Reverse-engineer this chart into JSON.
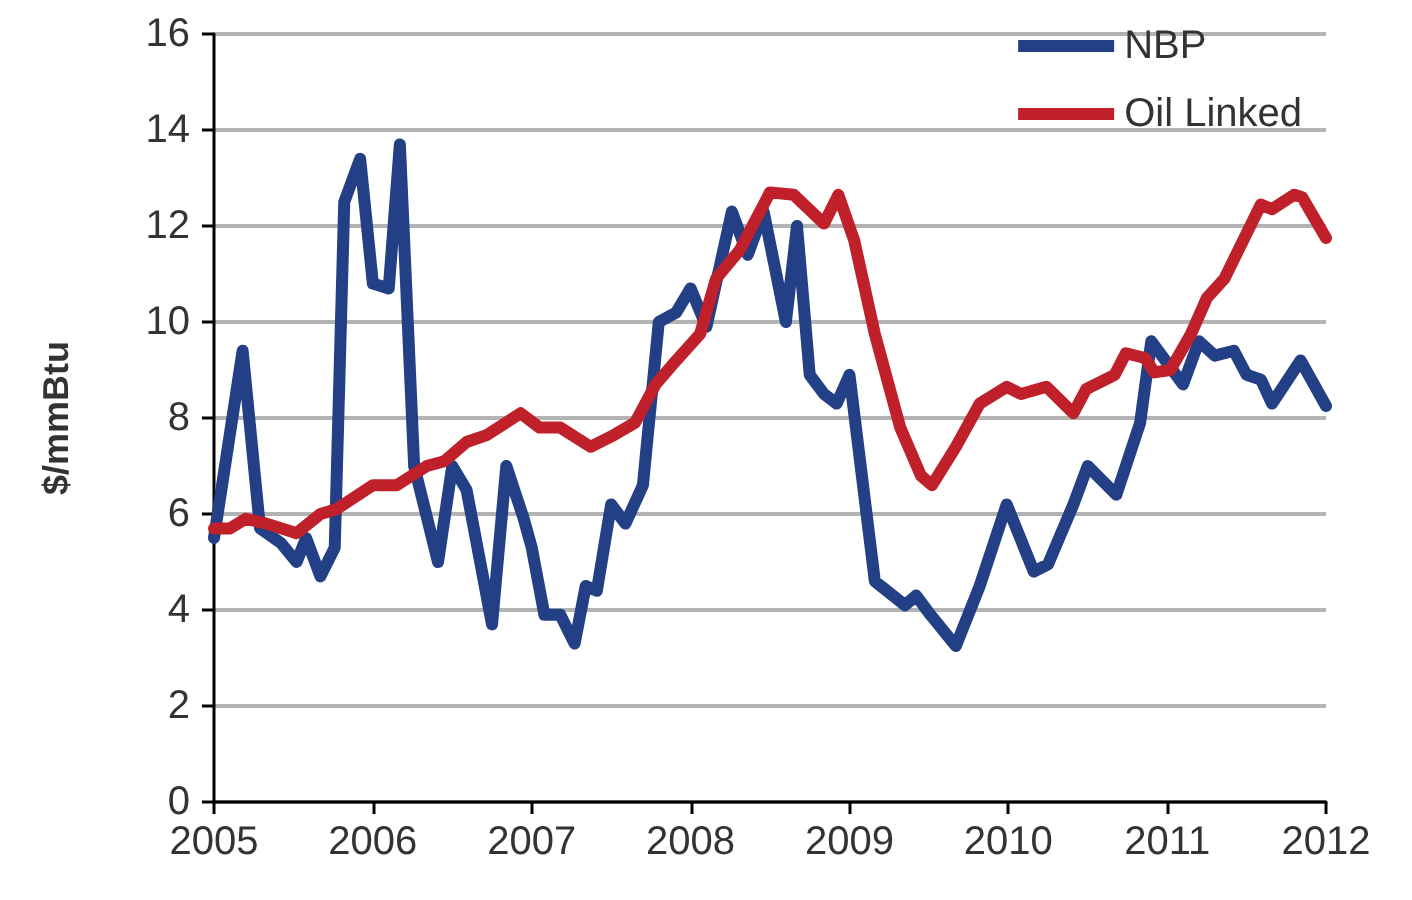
{
  "chart_data": {
    "type": "line",
    "ylabel": "$/mmBtu",
    "xlim": [
      2005,
      2012
    ],
    "xticks": [
      2005,
      2006,
      2007,
      2008,
      2009,
      2010,
      2011,
      2012
    ],
    "ylim": [
      0,
      16
    ],
    "yticks": [
      0,
      2,
      4,
      6,
      8,
      10,
      12,
      14,
      16
    ],
    "grid": "y",
    "legend": "top right",
    "marker": "none",
    "line_style": "solid",
    "series": [
      {
        "name": "NBP",
        "color": "#233f86",
        "x": [
          2005.0,
          2005.18,
          2005.29,
          2005.42,
          2005.52,
          2005.58,
          2005.67,
          2005.76,
          2005.82,
          2005.92,
          2006.0,
          2006.1,
          2006.17,
          2006.26,
          2006.41,
          2006.5,
          2006.59,
          2006.75,
          2006.84,
          2006.95,
          2007.0,
          2007.08,
          2007.18,
          2007.27,
          2007.34,
          2007.41,
          2007.5,
          2007.59,
          2007.7,
          2007.8,
          2007.91,
          2008.0,
          2008.1,
          2008.26,
          2008.36,
          2008.46,
          2008.6,
          2008.67,
          2008.75,
          2008.84,
          2008.92,
          2009.0,
          2009.16,
          2009.35,
          2009.42,
          2009.51,
          2009.67,
          2009.82,
          2009.99,
          2010.16,
          2010.25,
          2010.41,
          2010.5,
          2010.68,
          2010.83,
          2010.9,
          2011.1,
          2011.2,
          2011.3,
          2011.42,
          2011.5,
          2011.59,
          2011.66,
          2011.84,
          2012.0
        ],
        "values": [
          5.5,
          9.4,
          5.7,
          5.4,
          5.0,
          5.5,
          4.7,
          5.3,
          12.5,
          13.4,
          10.8,
          10.7,
          13.7,
          7.0,
          5.0,
          7.0,
          6.5,
          3.7,
          7.0,
          5.9,
          5.3,
          3.9,
          3.9,
          3.3,
          4.5,
          4.4,
          6.2,
          5.8,
          6.6,
          10.0,
          10.2,
          10.7,
          9.9,
          12.3,
          11.4,
          12.3,
          10.0,
          12.0,
          8.9,
          8.5,
          8.3,
          8.9,
          4.6,
          4.1,
          4.3,
          3.9,
          3.25,
          4.5,
          6.2,
          4.8,
          4.95,
          6.2,
          7.0,
          6.4,
          7.9,
          9.6,
          8.7,
          9.6,
          9.3,
          9.4,
          8.9,
          8.8,
          8.3,
          9.2,
          8.25
        ]
      },
      {
        "name": "Oil Linked",
        "color": "#c0202a",
        "x": [
          2005.0,
          2005.1,
          2005.2,
          2005.33,
          2005.52,
          2005.67,
          2005.77,
          2006.0,
          2006.15,
          2006.34,
          2006.45,
          2006.59,
          2006.72,
          2006.93,
          2007.05,
          2007.18,
          2007.37,
          2007.52,
          2007.65,
          2007.78,
          2007.91,
          2008.06,
          2008.16,
          2008.31,
          2008.5,
          2008.65,
          2008.84,
          2008.93,
          2009.03,
          2009.16,
          2009.32,
          2009.45,
          2009.52,
          2009.67,
          2009.82,
          2009.99,
          2010.08,
          2010.24,
          2010.41,
          2010.49,
          2010.67,
          2010.74,
          2010.86,
          2010.92,
          2011.02,
          2011.15,
          2011.25,
          2011.36,
          2011.59,
          2011.66,
          2011.8,
          2011.85,
          2012.0
        ],
        "values": [
          5.7,
          5.7,
          5.9,
          5.8,
          5.6,
          6.0,
          6.1,
          6.6,
          6.6,
          7.0,
          7.1,
          7.5,
          7.65,
          8.1,
          7.8,
          7.8,
          7.4,
          7.65,
          7.9,
          8.7,
          9.2,
          9.75,
          10.9,
          11.5,
          12.7,
          12.65,
          12.05,
          12.65,
          11.7,
          9.75,
          7.8,
          6.8,
          6.6,
          7.4,
          8.3,
          8.65,
          8.5,
          8.65,
          8.1,
          8.6,
          8.9,
          9.35,
          9.25,
          8.95,
          9.0,
          9.75,
          10.5,
          10.9,
          12.45,
          12.35,
          12.65,
          12.6,
          11.75
        ]
      }
    ]
  }
}
